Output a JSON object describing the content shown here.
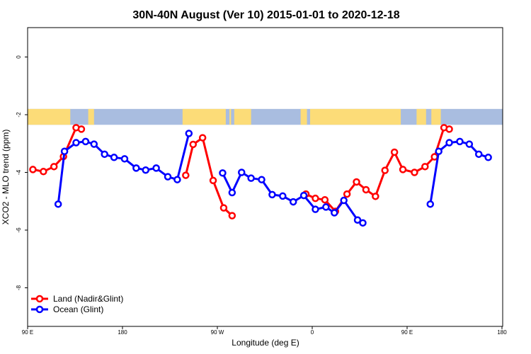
{
  "chart_data": {
    "type": "line",
    "title": "30N-40N August (Ver 10)   2015-01-01 to 2020-12-18",
    "xlabel": "Longitude (deg E)",
    "ylabel": "XCO2 - MLO trend (ppm)",
    "xlim": [
      90,
      540
    ],
    "ylim": [
      -9,
      1
    ],
    "x_ticks": [
      90,
      180,
      270,
      360,
      450,
      540
    ],
    "x_tick_labels": [
      "90 E",
      "180",
      "90 W",
      "0",
      "90 E",
      "180"
    ],
    "y_ticks": [
      0,
      -2,
      -4,
      -6,
      -8
    ],
    "y_tick_labels": [
      "0",
      "-2",
      "-4",
      "-6",
      "-8"
    ],
    "map_band": {
      "y_range": [
        -1.8,
        -2.35
      ],
      "ocean_color": "#a9bde0",
      "land_color": "#fcdc78",
      "land_segments": [
        [
          90,
          130.5
        ],
        [
          147.5,
          153
        ],
        [
          237,
          278
        ],
        [
          281.5,
          283
        ],
        [
          286,
          302
        ],
        [
          349,
          355
        ],
        [
          358,
          444
        ],
        [
          459,
          468
        ],
        [
          473,
          482
        ]
      ]
    },
    "series": [
      {
        "name": "Land (Nadir&Glint)",
        "color": "#ff0000",
        "segments": [
          [
            [
              95,
              -3.9
            ],
            [
              105,
              -3.97
            ],
            [
              115,
              -3.8
            ],
            [
              124,
              -3.45
            ],
            [
              136,
              -2.45
            ],
            [
              141,
              -2.5
            ]
          ],
          [
            [
              240,
              -4.1
            ],
            [
              247,
              -3.03
            ],
            [
              256,
              -2.8
            ],
            [
              266,
              -4.28
            ],
            [
              276,
              -5.23
            ],
            [
              284,
              -5.5
            ]
          ],
          [
            [
              354,
              -4.75
            ],
            [
              363,
              -4.9
            ],
            [
              372,
              -4.95
            ],
            [
              382,
              -5.35
            ],
            [
              393,
              -4.75
            ],
            [
              402,
              -4.33
            ],
            [
              411,
              -4.6
            ],
            [
              420,
              -4.83
            ],
            [
              429,
              -3.93
            ],
            [
              438,
              -3.3
            ],
            [
              446,
              -3.9
            ],
            [
              457,
              -4
            ],
            [
              467,
              -3.8
            ],
            [
              476,
              -3.46
            ],
            [
              485,
              -2.45
            ],
            [
              490,
              -2.5
            ]
          ]
        ]
      },
      {
        "name": "Ocean (Glint)",
        "color": "#0000ff",
        "segments": [
          [
            [
              119,
              -5.1
            ],
            [
              125,
              -3.27
            ],
            [
              136,
              -2.97
            ],
            [
              145,
              -2.93
            ],
            [
              153,
              -3.02
            ],
            [
              163,
              -3.37
            ],
            [
              172,
              -3.48
            ],
            [
              182,
              -3.53
            ],
            [
              193,
              -3.85
            ],
            [
              202,
              -3.92
            ],
            [
              212,
              -3.85
            ],
            [
              223,
              -4.15
            ],
            [
              232,
              -4.25
            ],
            [
              243,
              -2.65
            ]
          ],
          [
            [
              275,
              -4.02
            ],
            [
              284,
              -4.7
            ],
            [
              293,
              -4.0
            ],
            [
              302,
              -4.2
            ],
            [
              312,
              -4.25
            ],
            [
              322,
              -4.77
            ],
            [
              332,
              -4.82
            ],
            [
              342,
              -5.02
            ],
            [
              352,
              -4.8
            ],
            [
              363,
              -5.28
            ],
            [
              373,
              -5.2
            ],
            [
              381,
              -5.4
            ],
            [
              390,
              -4.97
            ],
            [
              403,
              -5.65
            ],
            [
              408,
              -5.75
            ]
          ],
          [
            [
              472,
              -5.1
            ],
            [
              480,
              -3.27
            ],
            [
              490,
              -2.97
            ],
            [
              500,
              -2.93
            ],
            [
              509,
              -3.02
            ],
            [
              518,
              -3.37
            ],
            [
              527,
              -3.48
            ]
          ]
        ]
      }
    ],
    "legend": "bottom-left"
  }
}
